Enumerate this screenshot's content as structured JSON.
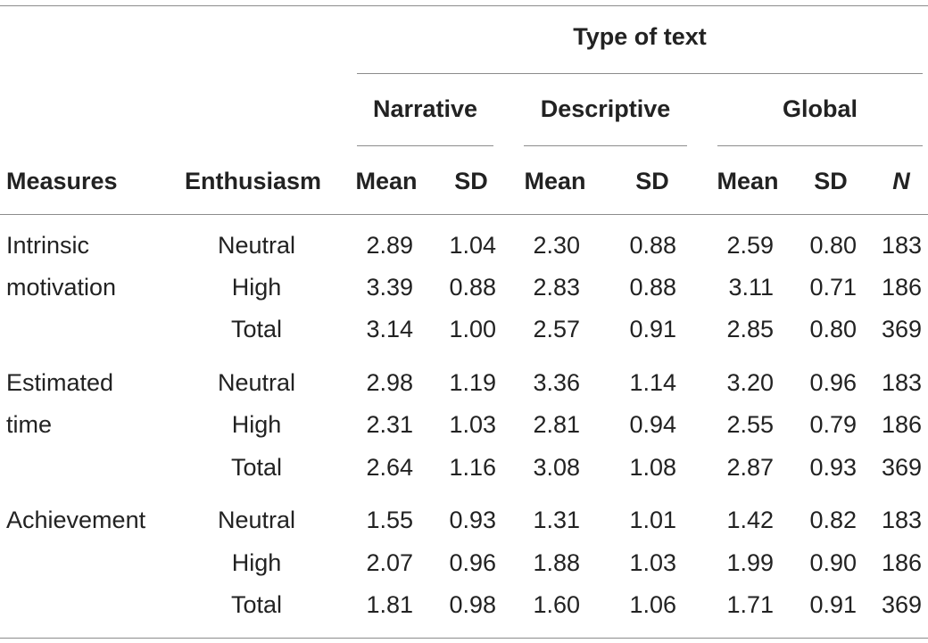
{
  "header": {
    "group_title": "Type of text",
    "text_types": [
      "Narrative",
      "Descriptive",
      "Global"
    ],
    "col_measures": "Measures",
    "col_enthusiasm": "Enthusiasm",
    "col_mean": "Mean",
    "col_sd": "SD",
    "col_n": "N"
  },
  "groups": [
    {
      "measure_line1": "Intrinsic",
      "measure_line2": "motivation",
      "rows": [
        {
          "enthusiasm": "Neutral",
          "n_mean": "2.89",
          "n_sd": "1.04",
          "d_mean": "2.30",
          "d_sd": "0.88",
          "g_mean": "2.59",
          "g_sd": "0.80",
          "n": "183"
        },
        {
          "enthusiasm": "High",
          "n_mean": "3.39",
          "n_sd": "0.88",
          "d_mean": "2.83",
          "d_sd": "0.88",
          "g_mean": "3.11",
          "g_sd": "0.71",
          "n": "186"
        },
        {
          "enthusiasm": "Total",
          "n_mean": "3.14",
          "n_sd": "1.00",
          "d_mean": "2.57",
          "d_sd": "0.91",
          "g_mean": "2.85",
          "g_sd": "0.80",
          "n": "369"
        }
      ]
    },
    {
      "measure_line1": "Estimated",
      "measure_line2": "time",
      "rows": [
        {
          "enthusiasm": "Neutral",
          "n_mean": "2.98",
          "n_sd": "1.19",
          "d_mean": "3.36",
          "d_sd": "1.14",
          "g_mean": "3.20",
          "g_sd": "0.96",
          "n": "183"
        },
        {
          "enthusiasm": "High",
          "n_mean": "2.31",
          "n_sd": "1.03",
          "d_mean": "2.81",
          "d_sd": "0.94",
          "g_mean": "2.55",
          "g_sd": "0.79",
          "n": "186"
        },
        {
          "enthusiasm": "Total",
          "n_mean": "2.64",
          "n_sd": "1.16",
          "d_mean": "3.08",
          "d_sd": "1.08",
          "g_mean": "2.87",
          "g_sd": "0.93",
          "n": "369"
        }
      ]
    },
    {
      "measure_line1": "Achievement",
      "measure_line2": "",
      "rows": [
        {
          "enthusiasm": "Neutral",
          "n_mean": "1.55",
          "n_sd": "0.93",
          "d_mean": "1.31",
          "d_sd": "1.01",
          "g_mean": "1.42",
          "g_sd": "0.82",
          "n": "183"
        },
        {
          "enthusiasm": "High",
          "n_mean": "2.07",
          "n_sd": "0.96",
          "d_mean": "1.88",
          "d_sd": "1.03",
          "g_mean": "1.99",
          "g_sd": "0.90",
          "n": "186"
        },
        {
          "enthusiasm": "Total",
          "n_mean": "1.81",
          "n_sd": "0.98",
          "d_mean": "1.60",
          "d_sd": "1.06",
          "g_mean": "1.71",
          "g_sd": "0.91",
          "n": "369"
        }
      ]
    }
  ]
}
